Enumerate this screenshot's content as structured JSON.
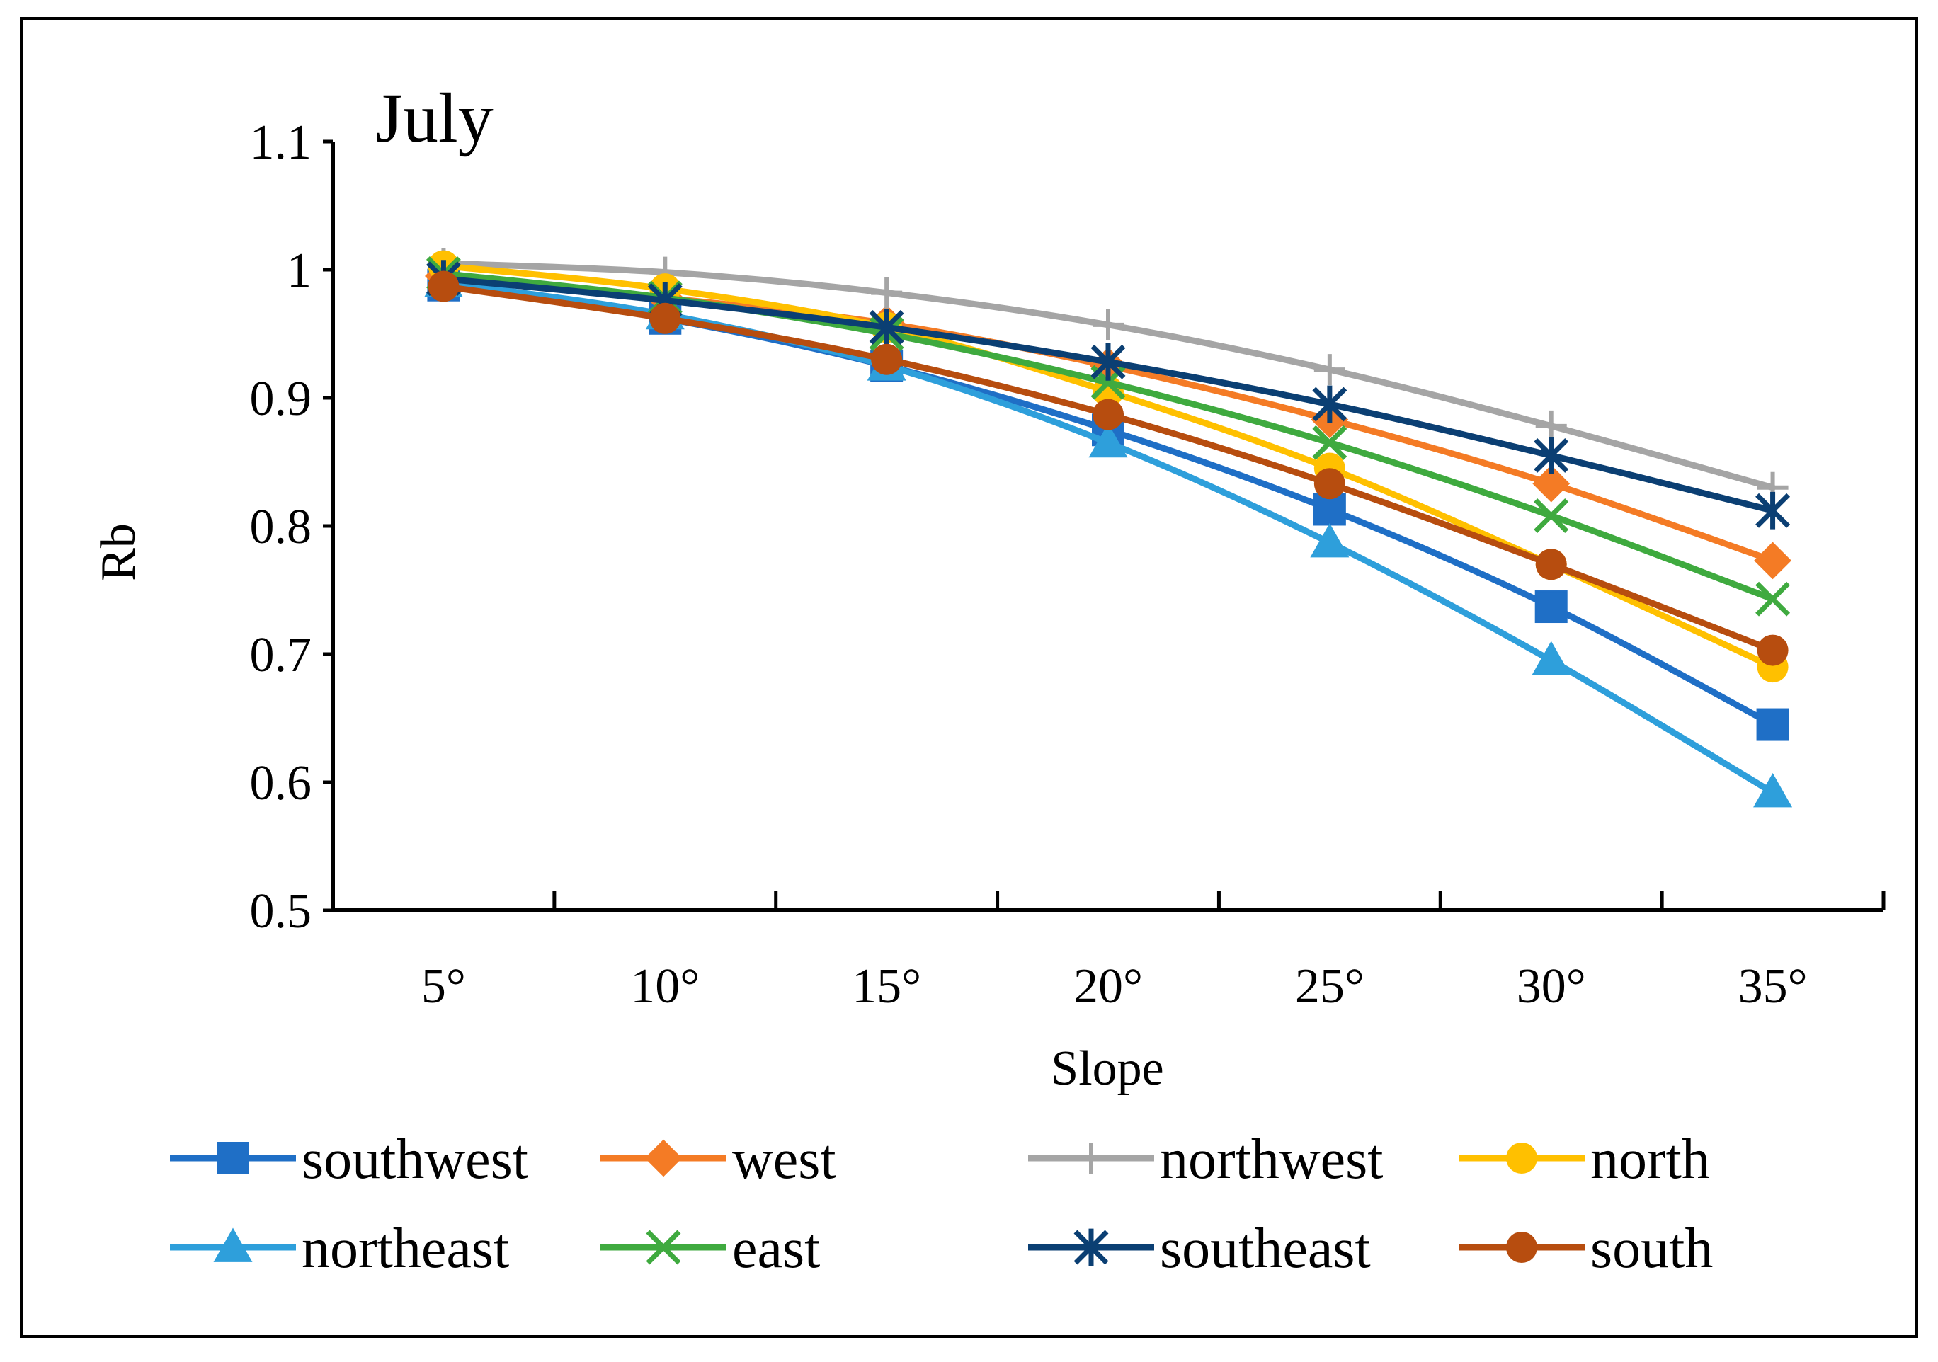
{
  "chart_data": {
    "type": "line",
    "title": "July",
    "xlabel": "Slope",
    "ylabel": "Rb",
    "categories": [
      "5°",
      "10°",
      "15°",
      "20°",
      "25°",
      "30°",
      "35°"
    ],
    "ylim": [
      0.5,
      1.1
    ],
    "yticks": [
      "0.5",
      "0.6",
      "0.7",
      "0.8",
      "0.9",
      "1",
      "1.1"
    ],
    "grid": false,
    "legend_position": "bottom",
    "series": [
      {
        "name": "southwest",
        "color": "#1F6FC6",
        "marker": "square",
        "values": [
          0.988,
          0.962,
          0.925,
          0.875,
          0.813,
          0.737,
          0.645
        ]
      },
      {
        "name": "west",
        "color": "#F47B25",
        "marker": "diamond",
        "values": [
          0.995,
          0.978,
          0.958,
          0.925,
          0.883,
          0.833,
          0.773
        ]
      },
      {
        "name": "northwest",
        "color": "#A5A5A5",
        "marker": "plus",
        "values": [
          1.005,
          0.998,
          0.982,
          0.957,
          0.922,
          0.878,
          0.83
        ]
      },
      {
        "name": "north",
        "color": "#FFC000",
        "marker": "circle",
        "values": [
          1.003,
          0.985,
          0.955,
          0.905,
          0.845,
          0.77,
          0.69
        ]
      },
      {
        "name": "northeast",
        "color": "#2E9FDB",
        "marker": "triangle",
        "values": [
          0.99,
          0.965,
          0.925,
          0.865,
          0.787,
          0.695,
          0.592
        ]
      },
      {
        "name": "east",
        "color": "#3FAA3F",
        "marker": "x",
        "values": [
          0.997,
          0.978,
          0.95,
          0.912,
          0.865,
          0.808,
          0.743
        ]
      },
      {
        "name": "southeast",
        "color": "#0B3F73",
        "marker": "star",
        "values": [
          0.993,
          0.976,
          0.955,
          0.928,
          0.895,
          0.855,
          0.812
        ]
      },
      {
        "name": "south",
        "color": "#B74D0F",
        "marker": "circle",
        "values": [
          0.987,
          0.962,
          0.93,
          0.887,
          0.833,
          0.77,
          0.703
        ]
      }
    ]
  }
}
